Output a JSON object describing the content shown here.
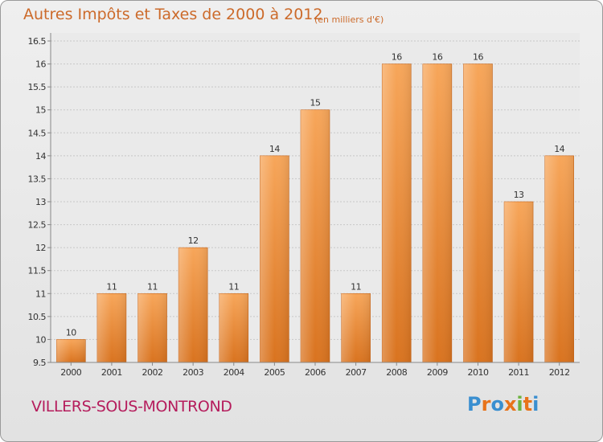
{
  "title": "Autres Impôts et Taxes de 2000 à 2012",
  "subtitle": "(en milliers d'€)",
  "commune": "VILLERS-SOUS-MONTROND",
  "logo": {
    "letters": [
      "P",
      "r",
      "o",
      "x",
      "i",
      "t",
      "i"
    ],
    "colors": [
      "#3a8fd0",
      "#e8731a",
      "#3a8fd0",
      "#e8731a",
      "#6cb33f",
      "#e8731a",
      "#3a8fd0"
    ]
  },
  "colors": {
    "bar_top": "#f7a65a",
    "bar_bottom": "#d9731f",
    "title": "#cc6a2a",
    "commune": "#b51c5c"
  },
  "chart_data": {
    "type": "bar",
    "title": "Autres Impôts et Taxes de 2000 à 2012",
    "categories": [
      "2000",
      "2001",
      "2002",
      "2003",
      "2004",
      "2005",
      "2006",
      "2007",
      "2008",
      "2009",
      "2010",
      "2011",
      "2012"
    ],
    "values": [
      10,
      11,
      11,
      12,
      11,
      14,
      15,
      11,
      16,
      16,
      16,
      13,
      14
    ],
    "ylim": [
      9.5,
      16.5
    ],
    "yticks": [
      "9.5",
      "10",
      "10.5",
      "11",
      "11.5",
      "12",
      "12.5",
      "13",
      "13.5",
      "14",
      "14.5",
      "15",
      "15.5",
      "16",
      "16.5"
    ],
    "grid": true
  }
}
